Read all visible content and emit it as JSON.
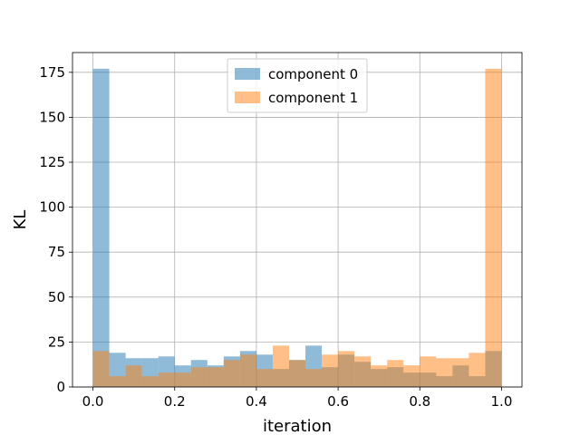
{
  "chart_data": {
    "type": "histogram",
    "xlabel": "iteration",
    "ylabel": "KL",
    "xlim": [
      -0.05,
      1.05
    ],
    "ylim": [
      0,
      186
    ],
    "grid": true,
    "legend_position": "top-center",
    "bins": 25,
    "bin_range": [
      0.0,
      1.0
    ],
    "x_ticks": [
      0.0,
      0.2,
      0.4,
      0.6,
      0.8,
      1.0
    ],
    "x_tick_labels": [
      "0.0",
      "0.2",
      "0.4",
      "0.6",
      "0.8",
      "1.0"
    ],
    "y_ticks": [
      0,
      25,
      50,
      75,
      100,
      125,
      150,
      175
    ],
    "y_tick_labels": [
      "0",
      "25",
      "50",
      "75",
      "100",
      "125",
      "150",
      "175"
    ],
    "series": [
      {
        "name": "component 0",
        "color": "#1f77b4",
        "alpha": 0.5,
        "values": [
          177,
          19,
          16,
          16,
          17,
          12,
          15,
          12,
          17,
          20,
          18,
          10,
          15,
          23,
          11,
          18,
          14,
          10,
          11,
          8,
          8,
          6,
          12,
          6,
          20
        ]
      },
      {
        "name": "component 1",
        "color": "#ff7f0e",
        "alpha": 0.5,
        "values": [
          20,
          6,
          12,
          6,
          8,
          8,
          11,
          11,
          15,
          18,
          10,
          23,
          15,
          10,
          18,
          20,
          17,
          12,
          15,
          12,
          17,
          16,
          16,
          19,
          177
        ]
      }
    ]
  }
}
